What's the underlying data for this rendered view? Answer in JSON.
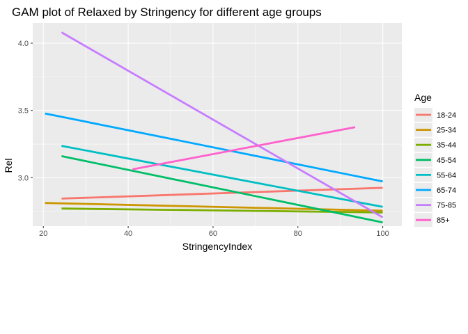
{
  "chart_data": {
    "type": "line",
    "title": "GAM plot of Relaxed by Stringency for different age groups",
    "xlabel": "StringencyIndex",
    "ylabel": "Rel",
    "xlim": [
      17.5,
      104.5
    ],
    "ylim": [
      2.64,
      4.15
    ],
    "x_ticks": [
      20,
      40,
      60,
      80,
      100
    ],
    "x_tick_labels": [
      "20",
      "40",
      "60",
      "80",
      "100"
    ],
    "y_ticks": [
      3.0,
      3.5,
      4.0
    ],
    "y_tick_labels": [
      "3.0",
      "3.5",
      "4.0"
    ],
    "grid": true,
    "legend": {
      "title": "Age",
      "position": "right"
    },
    "series": [
      {
        "name": "18-24",
        "color": "#F8766D",
        "x": [
          24.3,
          100
        ],
        "y": [
          2.845,
          2.925
        ]
      },
      {
        "name": "25-34",
        "color": "#CD9600",
        "x": [
          20.4,
          100
        ],
        "y": [
          2.812,
          2.755
        ]
      },
      {
        "name": "35-44",
        "color": "#7CAE00",
        "x": [
          24.3,
          100
        ],
        "y": [
          2.771,
          2.742
        ]
      },
      {
        "name": "45-54",
        "color": "#00BE67",
        "x": [
          24.3,
          100
        ],
        "y": [
          3.16,
          2.668
        ]
      },
      {
        "name": "55-64",
        "color": "#00BFC4",
        "x": [
          24.3,
          100
        ],
        "y": [
          3.237,
          2.783
        ]
      },
      {
        "name": "65-74",
        "color": "#00A9FF",
        "x": [
          20.4,
          100
        ],
        "y": [
          3.477,
          2.972
        ]
      },
      {
        "name": "75-85",
        "color": "#C77CFF",
        "x": [
          24.3,
          100
        ],
        "y": [
          4.08,
          2.705
        ]
      },
      {
        "name": "85+",
        "color": "#FF61CC",
        "x": [
          41.0,
          93.5
        ],
        "y": [
          3.062,
          3.376
        ]
      }
    ]
  }
}
